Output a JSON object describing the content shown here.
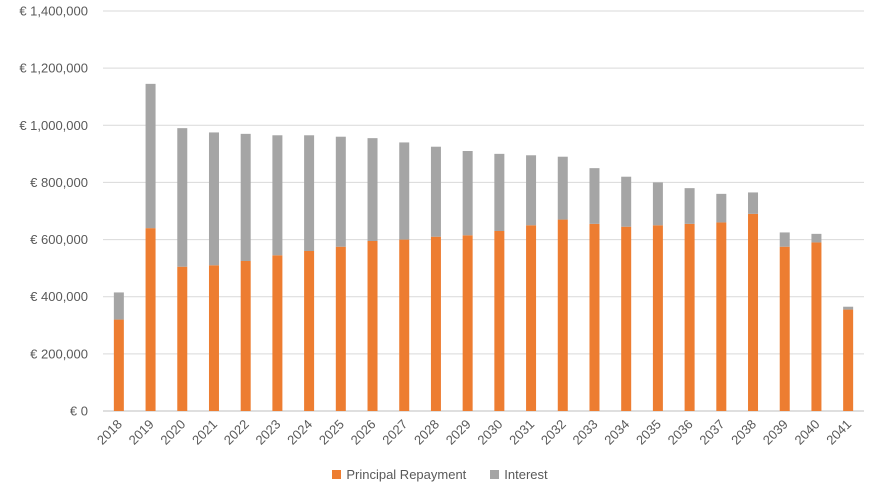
{
  "chart_data": {
    "type": "bar",
    "stacked": true,
    "categories": [
      "2018",
      "2019",
      "2020",
      "2021",
      "2022",
      "2023",
      "2024",
      "2025",
      "2026",
      "2027",
      "2028",
      "2029",
      "2030",
      "2031",
      "2032",
      "2033",
      "2034",
      "2035",
      "2036",
      "2037",
      "2038",
      "2039",
      "2040",
      "2041"
    ],
    "series": [
      {
        "name": "Principal Repayment",
        "color": "#ED7D31",
        "values": [
          320000,
          640000,
          505000,
          510000,
          525000,
          545000,
          560000,
          575000,
          595000,
          600000,
          610000,
          615000,
          630000,
          650000,
          670000,
          655000,
          645000,
          650000,
          655000,
          660000,
          690000,
          575000,
          590000,
          355000
        ]
      },
      {
        "name": "Interest",
        "color": "#A5A5A5",
        "values": [
          95000,
          505000,
          485000,
          465000,
          445000,
          420000,
          405000,
          385000,
          360000,
          340000,
          315000,
          295000,
          270000,
          245000,
          220000,
          195000,
          175000,
          150000,
          125000,
          100000,
          75000,
          50000,
          30000,
          10000
        ]
      }
    ],
    "ylim": [
      0,
      1400000
    ],
    "yticks": [
      0,
      200000,
      400000,
      600000,
      800000,
      1000000,
      1200000,
      1400000
    ],
    "ytick_labels": [
      "€ 0",
      "€ 200,000",
      "€ 400,000",
      "€ 600,000",
      "€ 800,000",
      "€ 1,000,000",
      "€ 1,200,000",
      "€ 1,400,000"
    ],
    "grid": true,
    "legend": "bottom",
    "gridColor": "#D9D9D9",
    "title": "",
    "xlabel": "",
    "ylabel": ""
  }
}
